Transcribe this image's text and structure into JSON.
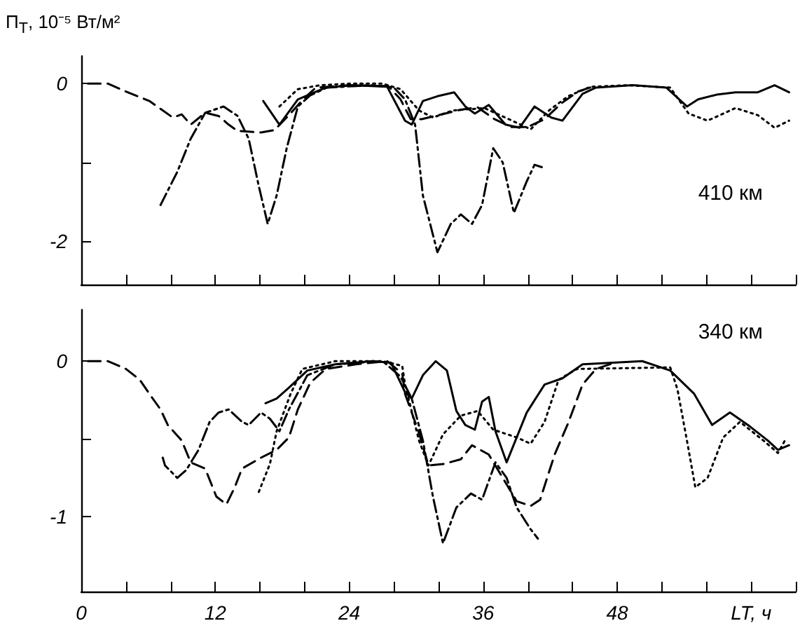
{
  "chart_data": [
    {
      "type": "line",
      "ylabel": "П$_{T}$, 10⁻⁵ Вт/м²",
      "annotations": [
        "410 км"
      ],
      "xlim": [
        0,
        64
      ],
      "ylim": [
        -2.55,
        0.35
      ],
      "xticks": [
        0,
        {
          "value": 4,
          "label": null
        },
        {
          "value": 8,
          "label": null
        },
        12,
        {
          "value": 16,
          "label": null
        },
        {
          "value": 20,
          "label": null
        },
        24,
        {
          "value": 28,
          "label": null
        },
        {
          "value": 32,
          "label": null
        },
        36,
        {
          "value": 40,
          "label": null
        },
        {
          "value": 44,
          "label": null
        },
        48,
        {
          "value": 52,
          "label": null
        },
        {
          "value": 56,
          "label": null
        },
        {
          "value": 60,
          "label": null
        },
        {
          "value": 64,
          "label": null
        }
      ],
      "yticks": [
        0,
        {
          "value": -1,
          "label": null
        },
        -2
      ],
      "tick_labels": "y",
      "grid": false,
      "marker": "none",
      "series": [
        {
          "color": "#000000",
          "line_style": "dashed",
          "x": [
            0.6,
            2.4,
            4,
            6.1,
            7.3,
            8.2,
            9,
            9.8,
            11.1,
            12.3,
            13.2,
            14,
            16.1,
            17.3,
            18.6,
            19.8,
            21,
            24,
            27.5,
            28.6,
            29.5,
            30.5,
            32,
            34,
            35.5,
            37,
            38.5,
            40,
            41.5,
            43,
            44.5,
            46
          ],
          "values": [
            0,
            0,
            -0.1,
            -0.22,
            -0.34,
            -0.43,
            -0.39,
            -0.52,
            -0.37,
            -0.41,
            -0.52,
            -0.6,
            -0.62,
            -0.59,
            -0.4,
            -0.21,
            -0.05,
            -0.02,
            -0.03,
            -0.2,
            -0.45,
            -0.45,
            -0.4,
            -0.33,
            -0.3,
            -0.45,
            -0.55,
            -0.55,
            -0.45,
            -0.25,
            -0.1,
            -0.03
          ]
        },
        {
          "color": "#000000",
          "line_style": "dashdot",
          "x": [
            7.1,
            8.6,
            9.8,
            11.1,
            12.75,
            14,
            15,
            15.9,
            16.7,
            17.5,
            18.4,
            19.4,
            20.5,
            22,
            26,
            28,
            29,
            29.9,
            30.6,
            31.9,
            33.1,
            34,
            35,
            35.9,
            36.9,
            37.75,
            38.75,
            39.9,
            40.6,
            41.25
          ],
          "values": [
            -1.54,
            -1.12,
            -0.7,
            -0.37,
            -0.29,
            -0.41,
            -0.7,
            -1.3,
            -1.78,
            -1.42,
            -0.82,
            -0.29,
            -0.15,
            -0.05,
            -0.02,
            -0.05,
            -0.2,
            -0.52,
            -1.42,
            -2.14,
            -1.78,
            -1.66,
            -1.78,
            -1.54,
            -0.82,
            -1,
            -1.64,
            -1.24,
            -1.03,
            -1.06
          ]
        },
        {
          "color": "#000000",
          "line_style": "solid",
          "x": [
            16.3,
            17.75,
            19.4,
            21.9,
            24.4,
            27.4,
            29,
            29.6,
            30.6,
            31.9,
            33.4,
            34.4,
            35.25,
            36.5,
            38,
            39.25,
            40.6,
            42.1,
            43.1,
            44.9,
            46.1,
            49.4,
            52.4,
            54.25,
            55.25,
            56.9,
            58.6,
            60.6,
            62.1,
            63.4
          ],
          "values": [
            -0.22,
            -0.52,
            -0.2,
            -0.05,
            -0.02,
            -0.04,
            -0.47,
            -0.52,
            -0.22,
            -0.16,
            -0.11,
            -0.29,
            -0.38,
            -0.27,
            -0.52,
            -0.56,
            -0.29,
            -0.43,
            -0.47,
            -0.13,
            -0.05,
            -0.02,
            -0.05,
            -0.29,
            -0.2,
            -0.14,
            -0.11,
            -0.11,
            -0.02,
            -0.11
          ]
        },
        {
          "color": "#000000",
          "line_style": "dotted",
          "x": [
            17.75,
            19.4,
            21.4,
            24,
            27,
            28.6,
            30.25,
            31.5,
            33.3,
            36.1,
            38.6,
            40.25,
            41.9,
            43.6,
            45.6,
            49,
            52.75,
            54.4,
            56.1,
            58.6,
            60.6,
            62.1,
            63.4
          ],
          "values": [
            -0.29,
            -0.07,
            -0.02,
            0,
            0,
            -0.07,
            -0.34,
            -0.43,
            -0.34,
            -0.31,
            -0.47,
            -0.58,
            -0.34,
            -0.16,
            -0.04,
            -0.02,
            -0.05,
            -0.38,
            -0.47,
            -0.31,
            -0.4,
            -0.56,
            -0.47
          ]
        }
      ]
    },
    {
      "type": "line",
      "xlabel": "LT, ч",
      "annotations": [
        "340 км"
      ],
      "xlim": [
        0,
        64
      ],
      "ylim": [
        -1.48,
        0.33
      ],
      "xticks": [
        0,
        {
          "value": 4,
          "label": null
        },
        {
          "value": 8,
          "label": null
        },
        12,
        {
          "value": 16,
          "label": null
        },
        {
          "value": 20,
          "label": null
        },
        24,
        {
          "value": 28,
          "label": null
        },
        {
          "value": 32,
          "label": null
        },
        36,
        {
          "value": 40,
          "label": null
        },
        {
          "value": 44,
          "label": null
        },
        48,
        {
          "value": 52,
          "label": null
        },
        {
          "value": 56,
          "label": null
        },
        {
          "value": 60,
          "label": null
        },
        {
          "value": 64,
          "label": null
        }
      ],
      "yticks": [
        0,
        {
          "value": -0.5,
          "label": null
        },
        -1
      ],
      "grid": false,
      "marker": "none",
      "series": [
        {
          "color": "#000000",
          "line_style": "dashed",
          "x": [
            0.6,
            2.4,
            4,
            5.25,
            6.1,
            7.1,
            7.75,
            9,
            9.8,
            11.1,
            12.1,
            13,
            13.75,
            14.4,
            16.1,
            17.5,
            18.6,
            19.4,
            20.5,
            21.9,
            24.6,
            27.4,
            28.75,
            29,
            30.2,
            31.1,
            32.5,
            34,
            35,
            36.5,
            37.75,
            39,
            40.25,
            41.1,
            42.4,
            43.6,
            44.9,
            46.1,
            47.75
          ],
          "values": [
            0,
            0,
            -0.05,
            -0.12,
            -0.21,
            -0.31,
            -0.41,
            -0.51,
            -0.65,
            -0.69,
            -0.87,
            -0.92,
            -0.81,
            -0.69,
            -0.62,
            -0.57,
            -0.49,
            -0.31,
            -0.14,
            -0.05,
            -0.02,
            0,
            -0.08,
            -0.21,
            -0.45,
            -0.67,
            -0.66,
            -0.63,
            -0.54,
            -0.6,
            -0.75,
            -0.9,
            -0.93,
            -0.89,
            -0.6,
            -0.4,
            -0.15,
            -0.05,
            -0.01
          ]
        },
        {
          "color": "#000000",
          "line_style": "dashdot",
          "x": [
            7.3,
            7.5,
            8.6,
            9.4,
            10.5,
            11.5,
            12.3,
            13.2,
            14.4,
            15,
            16.1,
            16.9,
            17.75,
            18.6,
            20.25,
            22.75,
            27,
            28.6,
            29.6,
            30.6,
            31.5,
            32.4,
            33.6,
            34.9,
            35.9,
            37.1,
            38.1,
            39,
            40.25,
            40.9
          ],
          "values": [
            -0.62,
            -0.67,
            -0.75,
            -0.7,
            -0.57,
            -0.39,
            -0.33,
            -0.31,
            -0.39,
            -0.41,
            -0.33,
            -0.37,
            -0.45,
            -0.31,
            -0.09,
            -0.02,
            0,
            -0.1,
            -0.24,
            -0.51,
            -0.87,
            -1.17,
            -0.94,
            -0.85,
            -0.89,
            -0.65,
            -0.75,
            -0.94,
            -1.08,
            -1.14
          ]
        },
        {
          "color": "#000000",
          "line_style": "solid",
          "x": [
            16.5,
            17.5,
            18.6,
            20.25,
            22.75,
            26.1,
            27.75,
            29,
            29.6,
            30.6,
            31.75,
            32.75,
            33.6,
            34.4,
            35.25,
            35.9,
            36.5,
            37.1,
            38.1,
            39.9,
            41.5,
            43.1,
            44.9,
            50.25,
            52.75,
            54.9,
            56.5,
            58.1,
            59.9,
            61.5,
            62.4,
            63.4
          ],
          "values": [
            -0.27,
            -0.24,
            -0.17,
            -0.06,
            -0.02,
            0,
            -0.01,
            -0.2,
            -0.24,
            -0.09,
            0,
            -0.06,
            -0.32,
            -0.41,
            -0.44,
            -0.26,
            -0.23,
            -0.45,
            -0.65,
            -0.33,
            -0.15,
            -0.11,
            -0.02,
            0,
            -0.06,
            -0.21,
            -0.41,
            -0.33,
            -0.42,
            -0.51,
            -0.57,
            -0.54
          ]
        },
        {
          "color": "#000000",
          "line_style": "dotted",
          "x": [
            15.9,
            16.9,
            17.5,
            18.75,
            19.8,
            22.75,
            27,
            28.75,
            29,
            30.25,
            31.1,
            32.4,
            34,
            35.5,
            36.9,
            39,
            40.25,
            41.5,
            42.75,
            44.4,
            52.75,
            53.4,
            54.25,
            55,
            56.1,
            57.5,
            59,
            61.1,
            62.4,
            63.1
          ],
          "values": [
            -0.84,
            -0.66,
            -0.45,
            -0.21,
            -0.05,
            0,
            0,
            -0.03,
            -0.15,
            -0.51,
            -0.67,
            -0.47,
            -0.35,
            -0.32,
            -0.44,
            -0.49,
            -0.53,
            -0.39,
            -0.12,
            -0.05,
            -0.04,
            -0.18,
            -0.51,
            -0.81,
            -0.75,
            -0.49,
            -0.39,
            -0.51,
            -0.59,
            -0.5
          ]
        }
      ]
    }
  ]
}
